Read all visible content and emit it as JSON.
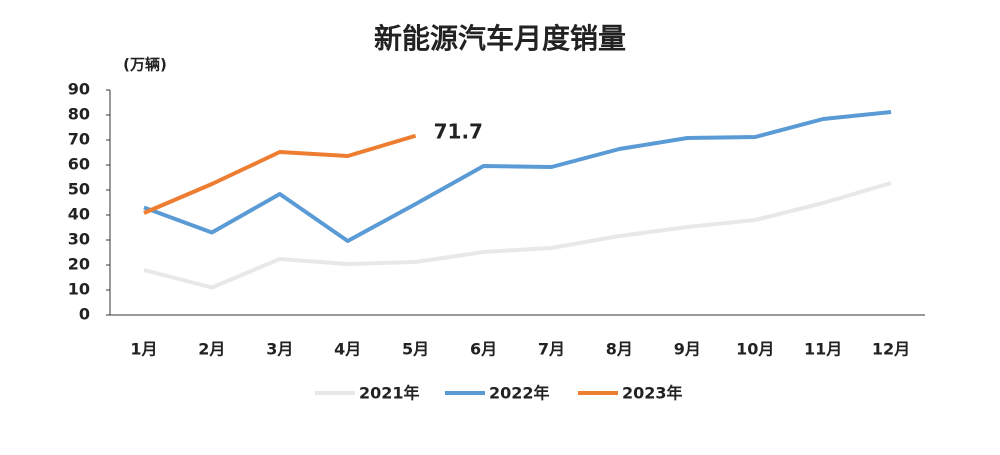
{
  "chart_data": {
    "type": "line",
    "title": "新能源汽车月度销量",
    "y_label": "(万辆)",
    "categories": [
      "1月",
      "2月",
      "3月",
      "4月",
      "5月",
      "6月",
      "7月",
      "8月",
      "9月",
      "10月",
      "11月",
      "12月"
    ],
    "series": [
      {
        "name": "2021年",
        "color": "#e8e8e8",
        "values": [
          18,
          11,
          22.4,
          20.4,
          21.2,
          25.2,
          26.8,
          31.6,
          35.2,
          38,
          44.8,
          52.8
        ]
      },
      {
        "name": "2022年",
        "color": "#5b9bd5",
        "values": [
          43,
          33,
          48.4,
          29.6,
          44.4,
          59.6,
          59.2,
          66.4,
          70.8,
          71.2,
          78.4,
          81.2
        ]
      },
      {
        "name": "2023年",
        "color": "#ed7d31",
        "values": [
          40.8,
          52.4,
          65.2,
          63.6,
          71.7,
          null,
          null,
          null,
          null,
          null,
          null,
          null
        ]
      }
    ],
    "ylim": [
      0,
      90
    ],
    "yticks": [
      0,
      10,
      20,
      30,
      40,
      50,
      60,
      70,
      80,
      90
    ],
    "legend": "bottom"
  }
}
